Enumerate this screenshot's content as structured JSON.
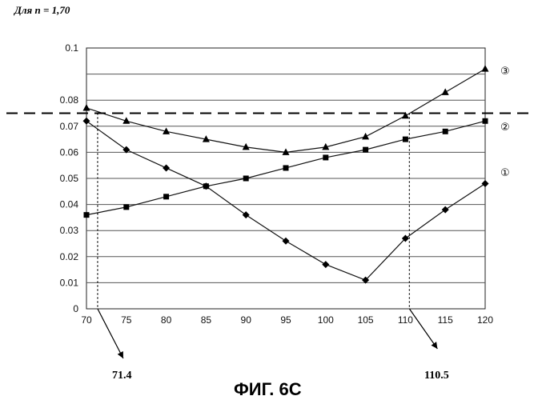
{
  "header": {
    "subtitle": "Для n = 1,70"
  },
  "caption": "ФИГ. 6С",
  "curve_labels": [
    "①",
    "②",
    "③"
  ],
  "chart_data": {
    "type": "line",
    "x": [
      70,
      75,
      80,
      85,
      90,
      95,
      100,
      105,
      110,
      115,
      120
    ],
    "xlim": [
      70,
      120
    ],
    "ylim": [
      0,
      0.1
    ],
    "yticks": [
      "0",
      "0.01",
      "0.02",
      "0.03",
      "0.04",
      "0.05",
      "0.06",
      "0.07",
      "0.08",
      "0.1"
    ],
    "xticks": [
      "70",
      "75",
      "80",
      "85",
      "90",
      "95",
      "100",
      "105",
      "110",
      "115",
      "120"
    ],
    "grid": "horizontal",
    "series": [
      {
        "name": "①",
        "marker": "diamond",
        "values": [
          0.072,
          0.061,
          0.054,
          0.047,
          0.036,
          0.026,
          0.017,
          0.011,
          0.027,
          0.038,
          0.048
        ]
      },
      {
        "name": "②",
        "marker": "square",
        "values": [
          0.036,
          0.039,
          0.043,
          0.047,
          0.05,
          0.054,
          0.058,
          0.061,
          0.065,
          0.068,
          0.072
        ]
      },
      {
        "name": "③",
        "marker": "triangle",
        "values": [
          0.077,
          0.072,
          0.068,
          0.065,
          0.062,
          0.06,
          0.062,
          0.066,
          0.074,
          0.083,
          0.092
        ]
      }
    ],
    "threshold": 0.075,
    "annotations": [
      "71.4",
      "110.5"
    ]
  }
}
